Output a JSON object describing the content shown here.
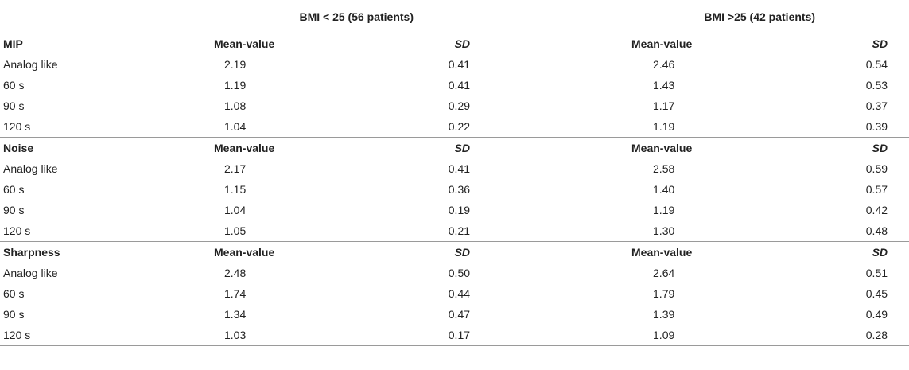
{
  "groups": [
    {
      "label": "BMI < 25 (56 patients)"
    },
    {
      "label": "BMI >25 (42 patients)"
    }
  ],
  "sections": [
    {
      "name": "MIP",
      "mean_header": "Mean-value",
      "sd_header": "SD",
      "rows": [
        {
          "label": "Analog like",
          "mean1": "2.19",
          "sd1": "0.41",
          "mean2": "2.46",
          "sd2": "0.54"
        },
        {
          "label": "60 s",
          "mean1": "1.19",
          "sd1": "0.41",
          "mean2": "1.43",
          "sd2": "0.53"
        },
        {
          "label": "90 s",
          "mean1": "1.08",
          "sd1": "0.29",
          "mean2": "1.17",
          "sd2": "0.37"
        },
        {
          "label": "120 s",
          "mean1": "1.04",
          "sd1": "0.22",
          "mean2": "1.19",
          "sd2": "0.39"
        }
      ]
    },
    {
      "name": "Noise",
      "mean_header": "Mean-value",
      "sd_header": "SD",
      "rows": [
        {
          "label": "Analog like",
          "mean1": "2.17",
          "sd1": "0.41",
          "mean2": "2.58",
          "sd2": "0.59"
        },
        {
          "label": "60 s",
          "mean1": "1.15",
          "sd1": "0.36",
          "mean2": "1.40",
          "sd2": "0.57"
        },
        {
          "label": "90 s",
          "mean1": "1.04",
          "sd1": "0.19",
          "mean2": "1.19",
          "sd2": "0.42"
        },
        {
          "label": "120 s",
          "mean1": "1.05",
          "sd1": "0.21",
          "mean2": "1.30",
          "sd2": "0.48"
        }
      ]
    },
    {
      "name": "Sharpness",
      "mean_header": "Mean-value",
      "sd_header": "SD",
      "rows": [
        {
          "label": "Analog like",
          "mean1": "2.48",
          "sd1": "0.50",
          "mean2": "2.64",
          "sd2": "0.51"
        },
        {
          "label": "60 s",
          "mean1": "1.74",
          "sd1": "0.44",
          "mean2": "1.79",
          "sd2": "0.45"
        },
        {
          "label": "90 s",
          "mean1": "1.34",
          "sd1": "0.47",
          "mean2": "1.39",
          "sd2": "0.49"
        },
        {
          "label": "120 s",
          "mean1": "1.03",
          "sd1": "0.17",
          "mean2": "1.09",
          "sd2": "0.28"
        }
      ]
    }
  ]
}
